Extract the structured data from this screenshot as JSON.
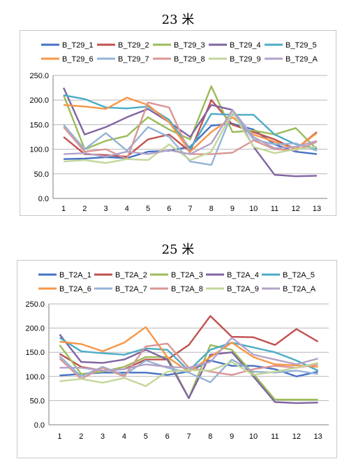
{
  "chart_data": [
    {
      "type": "line",
      "title": "23 米",
      "categories": [
        "1",
        "2",
        "3",
        "4",
        "5",
        "6",
        "7",
        "8",
        "9",
        "10",
        "11",
        "12",
        "13"
      ],
      "ylim": [
        0,
        250
      ],
      "yticks": [
        "0.0",
        "50.0",
        "100.0",
        "150.0",
        "200.0",
        "250.0"
      ],
      "grid": true,
      "legend_position": "top",
      "series": [
        {
          "name": "B_T29_1",
          "color": "#4472C4",
          "values": [
            80,
            81,
            84,
            82,
            95,
            97,
            105,
            148,
            152,
            140,
            110,
            95,
            90
          ]
        },
        {
          "name": "B_T29_2",
          "color": "#C0504D",
          "values": [
            125,
            90,
            88,
            85,
            120,
            130,
            95,
            200,
            150,
            135,
            120,
            100,
            135
          ]
        },
        {
          "name": "B_T29_3",
          "color": "#9BBB59",
          "values": [
            210,
            100,
            117,
            127,
            165,
            140,
            120,
            228,
            135,
            138,
            130,
            143,
            100
          ]
        },
        {
          "name": "B_T29_4",
          "color": "#8064A2",
          "values": [
            225,
            130,
            145,
            165,
            182,
            155,
            125,
            190,
            180,
            105,
            48,
            45,
            46
          ]
        },
        {
          "name": "B_T29_5",
          "color": "#4BACC6",
          "values": [
            210,
            202,
            185,
            183,
            187,
            160,
            100,
            172,
            170,
            170,
            130,
            110,
            102
          ]
        },
        {
          "name": "B_T29_6",
          "color": "#F79646",
          "values": [
            190,
            187,
            182,
            205,
            190,
            155,
            95,
            135,
            165,
            130,
            115,
            100,
            133
          ]
        },
        {
          "name": "B_T29_7",
          "color": "#95B3D7",
          "values": [
            150,
            100,
            133,
            97,
            145,
            125,
            75,
            68,
            175,
            120,
            110,
            112,
            97
          ]
        },
        {
          "name": "B_T29_8",
          "color": "#D99694",
          "values": [
            145,
            95,
            100,
            80,
            195,
            185,
            90,
            90,
            93,
            118,
            100,
            98,
            115
          ]
        },
        {
          "name": "B_T29_9",
          "color": "#C3D69B",
          "values": [
            75,
            78,
            72,
            80,
            78,
            110,
            78,
            95,
            175,
            105,
            92,
            100,
            105
          ]
        },
        {
          "name": "B_T29_A",
          "color": "#B3A2C7",
          "values": [
            90,
            92,
            85,
            95,
            90,
            98,
            90,
            112,
            180,
            125,
            102,
            105,
            117
          ]
        }
      ]
    },
    {
      "type": "line",
      "title": "25 米",
      "categories": [
        "1",
        "2",
        "3",
        "4",
        "5",
        "6",
        "7",
        "8",
        "9",
        "10",
        "11",
        "12",
        "13"
      ],
      "ylim": [
        0,
        250
      ],
      "yticks": [
        "0.0",
        "50.0",
        "100.0",
        "150.0",
        "200.0",
        "250.0"
      ],
      "grid": true,
      "legend_position": "top",
      "series": [
        {
          "name": "B_T2A_1",
          "color": "#4472C4",
          "values": [
            102,
            105,
            108,
            108,
            108,
            103,
            110,
            133,
            122,
            122,
            115,
            100,
            110
          ]
        },
        {
          "name": "B_T2A_2",
          "color": "#C0504D",
          "values": [
            147,
            120,
            112,
            115,
            135,
            135,
            165,
            225,
            182,
            181,
            165,
            198,
            172
          ]
        },
        {
          "name": "B_T2A_3",
          "color": "#9BBB59",
          "values": [
            165,
            105,
            110,
            120,
            140,
            140,
            55,
            165,
            155,
            105,
            52,
            52,
            52
          ]
        },
        {
          "name": "B_T2A_4",
          "color": "#8064A2",
          "values": [
            187,
            130,
            128,
            135,
            155,
            135,
            55,
            145,
            150,
            100,
            47,
            45,
            46
          ]
        },
        {
          "name": "B_T2A_5",
          "color": "#4BACC6",
          "values": [
            180,
            152,
            148,
            145,
            158,
            155,
            112,
            155,
            170,
            160,
            150,
            133,
            112
          ]
        },
        {
          "name": "B_T2A_6",
          "color": "#F79646",
          "values": [
            172,
            167,
            152,
            170,
            202,
            140,
            110,
            140,
            170,
            140,
            125,
            123,
            120
          ]
        },
        {
          "name": "B_T2A_7",
          "color": "#95B3D7",
          "values": [
            142,
            100,
            120,
            103,
            133,
            118,
            108,
            88,
            135,
            110,
            108,
            112,
            105
          ]
        },
        {
          "name": "B_T2A_8",
          "color": "#D99694",
          "values": [
            137,
            95,
            118,
            100,
            162,
            168,
            118,
            110,
            103,
            115,
            122,
            118,
            125
          ]
        },
        {
          "name": "B_T2A_9",
          "color": "#C3D69B",
          "values": [
            90,
            95,
            87,
            97,
            80,
            110,
            113,
            112,
            130,
            103,
            110,
            118,
            128
          ]
        },
        {
          "name": "B_T2A_A",
          "color": "#B3A2C7",
          "values": [
            118,
            118,
            112,
            115,
            125,
            120,
            118,
            130,
            180,
            145,
            135,
            125,
            137
          ]
        }
      ]
    }
  ]
}
